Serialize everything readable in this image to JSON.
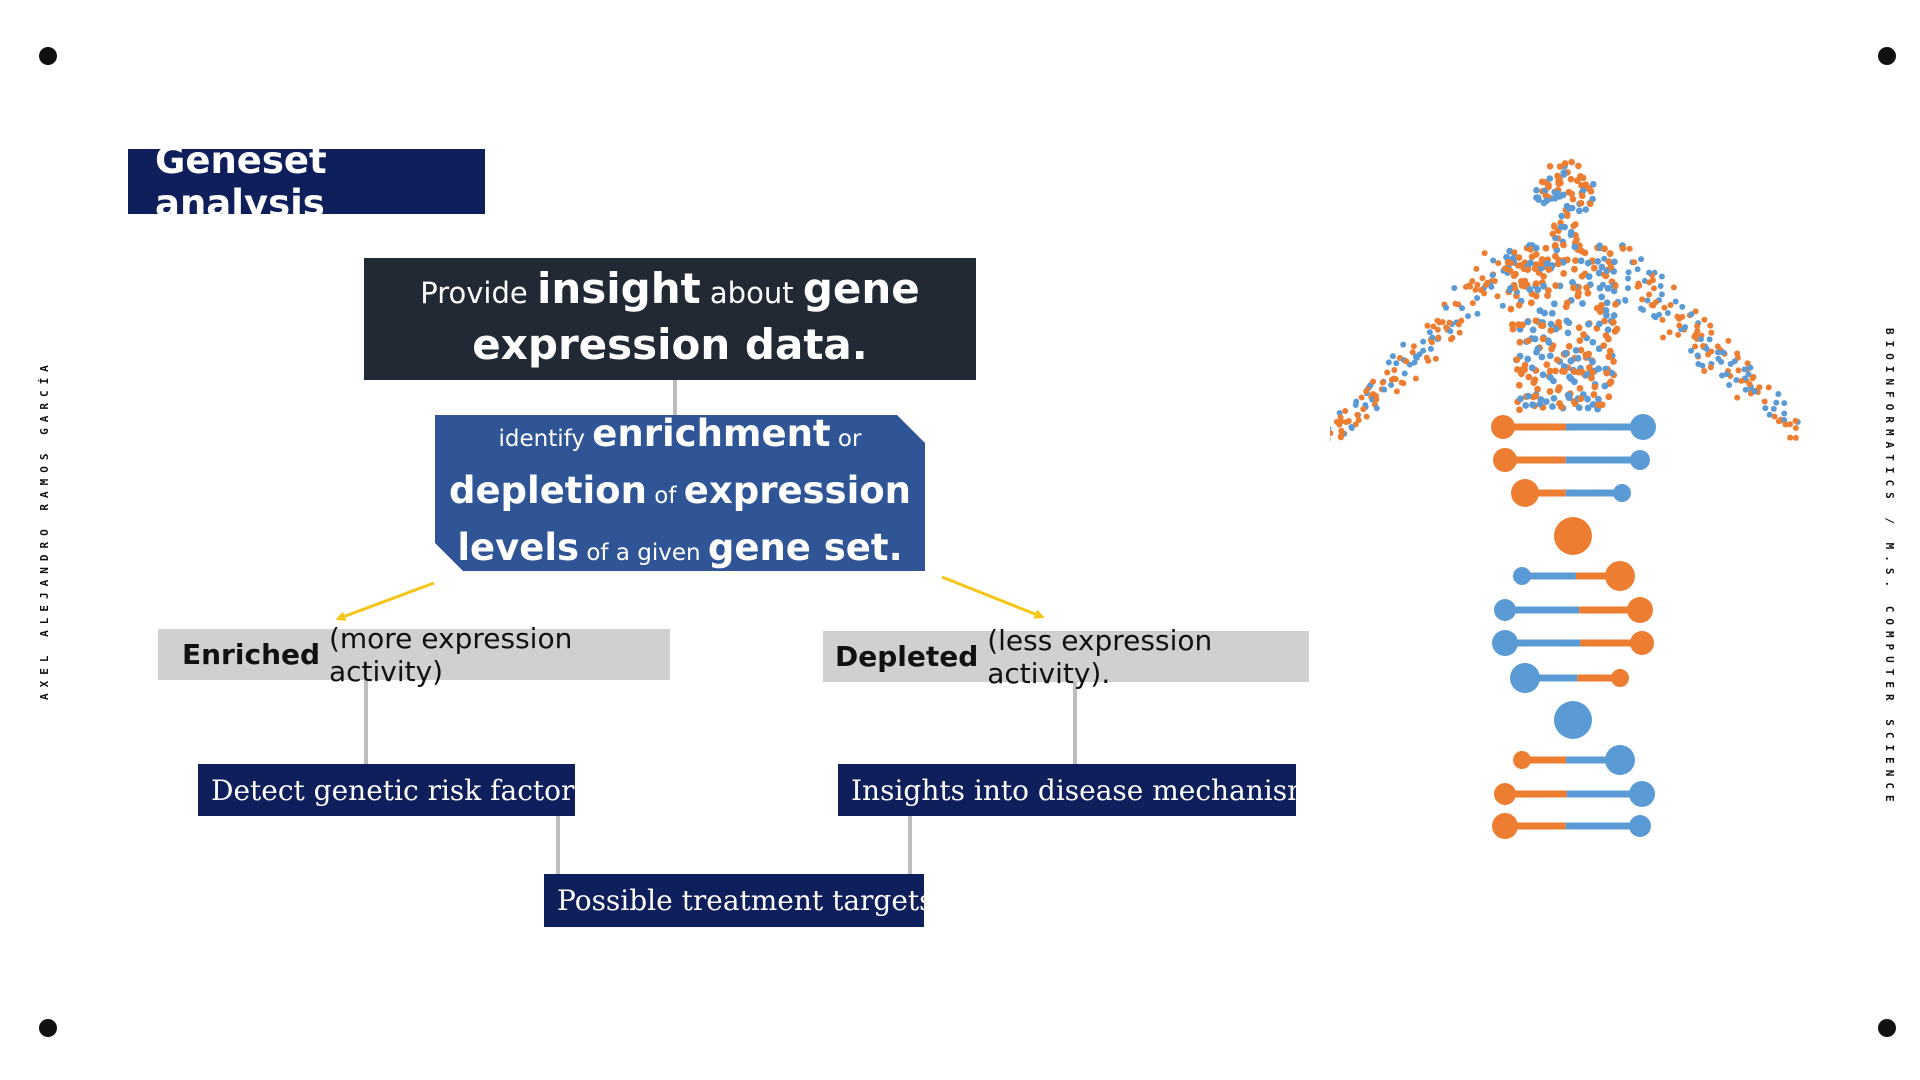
{
  "slide": {
    "title": "Geneset analysis",
    "side_text_left": "AXEL ALEJANDRO RAMOS GARCÍA",
    "side_text_right": "BIOINFORMATICS / M.S. COMPUTER SCIENCE"
  },
  "insight": {
    "w1": "Provide",
    "w2": "insight",
    "w3": "about",
    "w4": "gene",
    "w5": "expression data."
  },
  "enrichment": {
    "w1": "identify",
    "w2": "enrichment",
    "w3": "or",
    "w4": "depletion",
    "w5": "of",
    "w6": "expression",
    "w7": "levels",
    "w8": "of a given",
    "w9": "gene set."
  },
  "enriched": {
    "bold": "Enriched",
    "rest": "(more expression activity)"
  },
  "depleted": {
    "bold": "Depleted",
    "rest": "(less expression activity)."
  },
  "risk": "Detect genetic risk factors",
  "insights": "Insights into disease mechanisms",
  "treatment": "Possible treatment targets",
  "colors": {
    "navy": "#0e1f5b",
    "dark": "#212934",
    "blue": "#2f5597",
    "grey": "#d0d0d0",
    "arrow": "#f5c518",
    "orange": "#ed7d31",
    "light_blue": "#5b9bd5"
  },
  "illustration": {
    "icon": "dna-human-figure-icon"
  }
}
